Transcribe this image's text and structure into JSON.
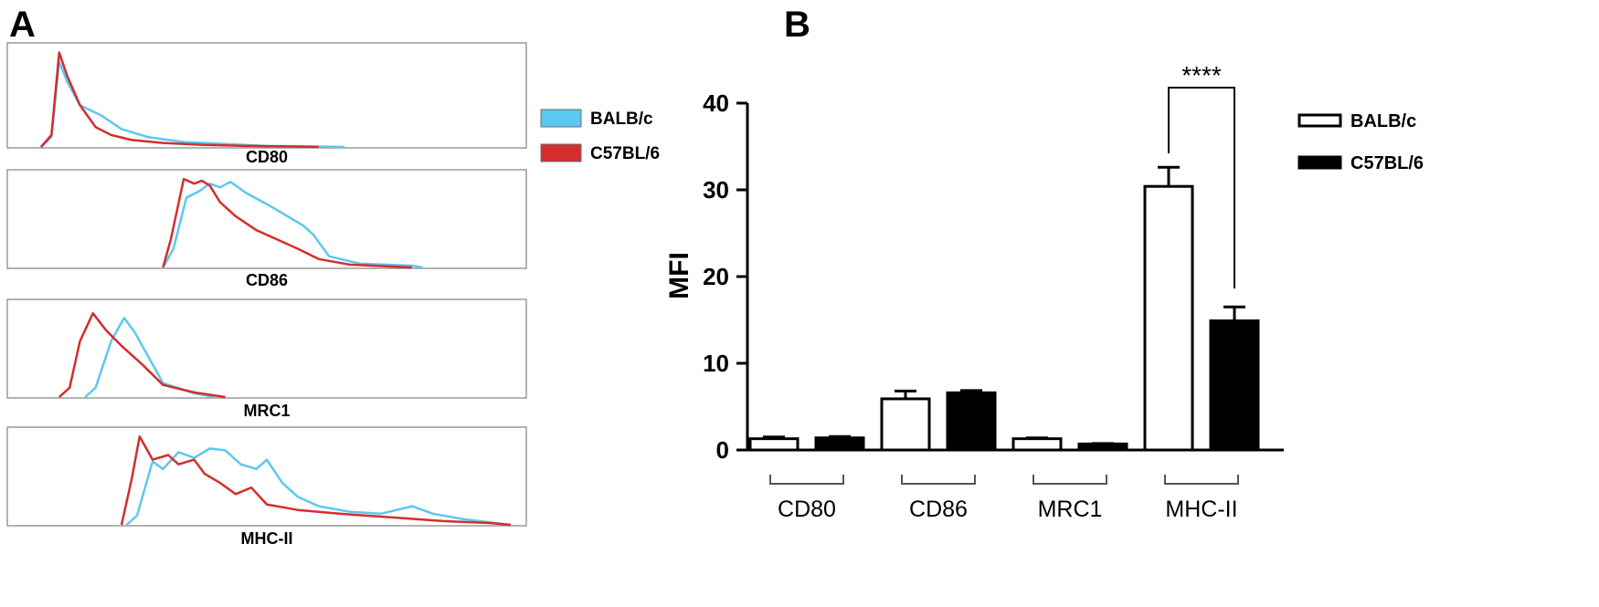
{
  "panel_labels": {
    "a": "A",
    "b": "B"
  },
  "colors": {
    "balbc": "#5bc8f0",
    "c57": "#d42d2d",
    "bar_open": "#ffffff",
    "bar_filled": "#000000"
  },
  "histograms": {
    "legend": [
      {
        "label": "BALB/c",
        "color": "#5bc8f0"
      },
      {
        "label": "C57BL/6",
        "color": "#d42d2d"
      }
    ],
    "panels": [
      {
        "label": "CD80",
        "balbc": [
          [
            0.065,
            0
          ],
          [
            0.085,
            0.1
          ],
          [
            0.1,
            0.86
          ],
          [
            0.115,
            0.66
          ],
          [
            0.14,
            0.42
          ],
          [
            0.18,
            0.32
          ],
          [
            0.22,
            0.18
          ],
          [
            0.27,
            0.1
          ],
          [
            0.34,
            0.05
          ],
          [
            0.42,
            0.03
          ],
          [
            0.5,
            0.01
          ],
          [
            0.6,
            0.005
          ],
          [
            0.65,
            0
          ]
        ],
        "c57": [
          [
            0.065,
            0
          ],
          [
            0.085,
            0.12
          ],
          [
            0.1,
            0.95
          ],
          [
            0.115,
            0.72
          ],
          [
            0.14,
            0.42
          ],
          [
            0.17,
            0.2
          ],
          [
            0.2,
            0.12
          ],
          [
            0.24,
            0.07
          ],
          [
            0.3,
            0.04
          ],
          [
            0.38,
            0.02
          ],
          [
            0.46,
            0.01
          ],
          [
            0.55,
            0.005
          ],
          [
            0.6,
            0
          ]
        ]
      },
      {
        "label": "CD86",
        "balbc": [
          [
            0.3,
            0
          ],
          [
            0.32,
            0.2
          ],
          [
            0.345,
            0.75
          ],
          [
            0.37,
            0.82
          ],
          [
            0.39,
            0.9
          ],
          [
            0.41,
            0.86
          ],
          [
            0.43,
            0.92
          ],
          [
            0.46,
            0.8
          ],
          [
            0.5,
            0.68
          ],
          [
            0.54,
            0.55
          ],
          [
            0.57,
            0.45
          ],
          [
            0.59,
            0.35
          ],
          [
            0.62,
            0.12
          ],
          [
            0.68,
            0.04
          ],
          [
            0.78,
            0.02
          ],
          [
            0.8,
            0
          ]
        ],
        "c57": [
          [
            0.3,
            0
          ],
          [
            0.315,
            0.3
          ],
          [
            0.34,
            0.95
          ],
          [
            0.36,
            0.9
          ],
          [
            0.375,
            0.93
          ],
          [
            0.39,
            0.88
          ],
          [
            0.41,
            0.7
          ],
          [
            0.44,
            0.55
          ],
          [
            0.48,
            0.4
          ],
          [
            0.52,
            0.3
          ],
          [
            0.56,
            0.2
          ],
          [
            0.6,
            0.09
          ],
          [
            0.66,
            0.03
          ],
          [
            0.74,
            0.01
          ],
          [
            0.78,
            0
          ]
        ]
      },
      {
        "label": "MRC1",
        "balbc": [
          [
            0.15,
            0
          ],
          [
            0.17,
            0.1
          ],
          [
            0.2,
            0.6
          ],
          [
            0.225,
            0.85
          ],
          [
            0.245,
            0.7
          ],
          [
            0.27,
            0.45
          ],
          [
            0.3,
            0.15
          ],
          [
            0.36,
            0.04
          ],
          [
            0.4,
            0
          ]
        ],
        "c57": [
          [
            0.1,
            0
          ],
          [
            0.12,
            0.1
          ],
          [
            0.14,
            0.6
          ],
          [
            0.165,
            0.9
          ],
          [
            0.19,
            0.72
          ],
          [
            0.22,
            0.55
          ],
          [
            0.26,
            0.35
          ],
          [
            0.3,
            0.13
          ],
          [
            0.36,
            0.05
          ],
          [
            0.42,
            0
          ]
        ]
      },
      {
        "label": "MHC-II",
        "balbc": [
          [
            0.23,
            0
          ],
          [
            0.25,
            0.1
          ],
          [
            0.28,
            0.68
          ],
          [
            0.3,
            0.6
          ],
          [
            0.33,
            0.78
          ],
          [
            0.36,
            0.72
          ],
          [
            0.39,
            0.82
          ],
          [
            0.42,
            0.8
          ],
          [
            0.45,
            0.65
          ],
          [
            0.48,
            0.6
          ],
          [
            0.5,
            0.7
          ],
          [
            0.53,
            0.45
          ],
          [
            0.56,
            0.3
          ],
          [
            0.6,
            0.2
          ],
          [
            0.66,
            0.14
          ],
          [
            0.72,
            0.12
          ],
          [
            0.78,
            0.2
          ],
          [
            0.82,
            0.12
          ],
          [
            0.88,
            0.06
          ],
          [
            0.94,
            0.02
          ],
          [
            0.97,
            0
          ]
        ],
        "c57": [
          [
            0.22,
            0
          ],
          [
            0.24,
            0.5
          ],
          [
            0.255,
            0.95
          ],
          [
            0.28,
            0.7
          ],
          [
            0.31,
            0.75
          ],
          [
            0.33,
            0.65
          ],
          [
            0.36,
            0.7
          ],
          [
            0.38,
            0.55
          ],
          [
            0.41,
            0.45
          ],
          [
            0.44,
            0.33
          ],
          [
            0.47,
            0.4
          ],
          [
            0.5,
            0.22
          ],
          [
            0.56,
            0.16
          ],
          [
            0.64,
            0.12
          ],
          [
            0.74,
            0.08
          ],
          [
            0.84,
            0.04
          ],
          [
            0.93,
            0.02
          ],
          [
            0.97,
            0
          ]
        ]
      }
    ]
  },
  "chart_data": {
    "type": "bar",
    "title": "",
    "ylabel": "MFI",
    "xlabel": "",
    "categories": [
      "CD80",
      "CD86",
      "MRC1",
      "MHC-II"
    ],
    "ylim": [
      0,
      40
    ],
    "yticks": [
      0,
      10,
      20,
      30,
      40
    ],
    "series": [
      {
        "name": "BALB/c",
        "fill": "white",
        "values": [
          1.3,
          5.9,
          1.3,
          30.4
        ],
        "errors": [
          0.2,
          0.9,
          0.1,
          2.2
        ]
      },
      {
        "name": "C57BL/6",
        "fill": "black",
        "values": [
          1.4,
          6.6,
          0.7,
          14.9
        ],
        "errors": [
          0.15,
          0.25,
          0.05,
          1.6
        ]
      }
    ],
    "annotations": [
      {
        "text": "****",
        "category": "MHC-II"
      }
    ],
    "legend_position": "top-right"
  }
}
